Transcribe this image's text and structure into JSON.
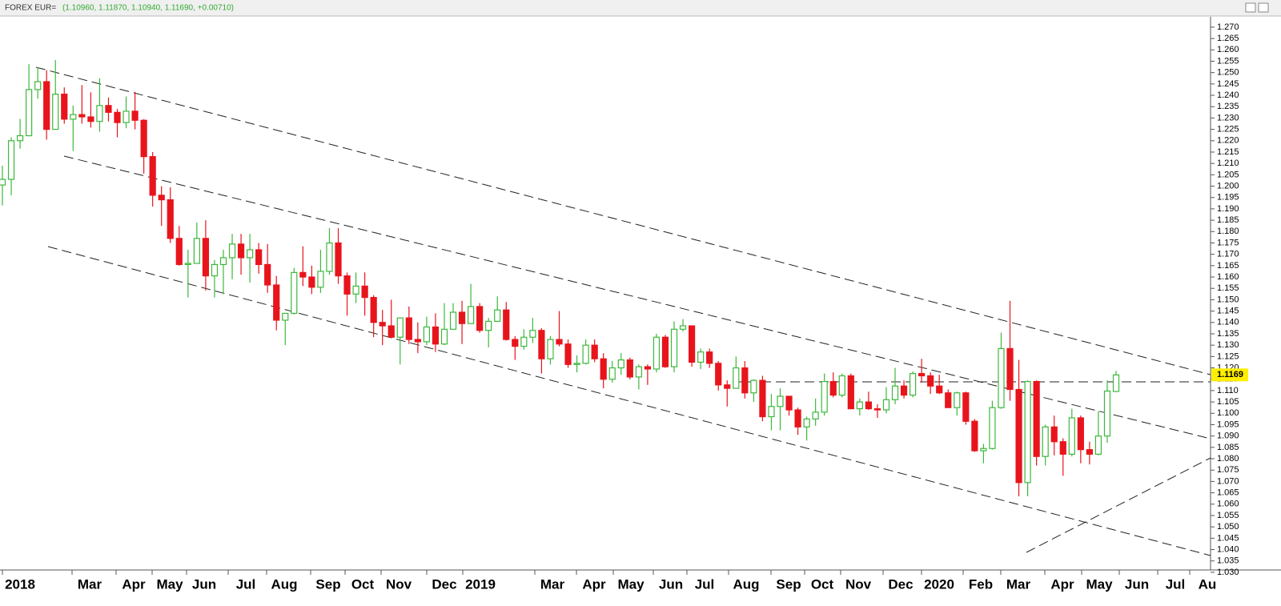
{
  "header": {
    "symbol": "FOREX EUR=",
    "quote": "(1.10960, 1.11870, 1.10940, 1.11690, +0.00710)"
  },
  "chart_data": {
    "type": "candlestick",
    "up_color": "#3cb83c",
    "down_color": "#e8141c",
    "ylim": [
      1.0275,
      1.2742
    ],
    "yticks": [
      {
        "value": 1.03,
        "label": "1.030"
      },
      {
        "value": 1.035,
        "label": "1.035"
      },
      {
        "value": 1.04,
        "label": "1.040"
      },
      {
        "value": 1.045,
        "label": "1.045"
      },
      {
        "value": 1.05,
        "label": "1.050"
      },
      {
        "value": 1.055,
        "label": "1.055"
      },
      {
        "value": 1.06,
        "label": "1.060"
      },
      {
        "value": 1.065,
        "label": "1.065"
      },
      {
        "value": 1.07,
        "label": "1.070"
      },
      {
        "value": 1.075,
        "label": "1.075"
      },
      {
        "value": 1.08,
        "label": "1.080"
      },
      {
        "value": 1.085,
        "label": "1.085"
      },
      {
        "value": 1.09,
        "label": "1.090"
      },
      {
        "value": 1.095,
        "label": "1.095"
      },
      {
        "value": 1.1,
        "label": "1.100"
      },
      {
        "value": 1.105,
        "label": "1.105"
      },
      {
        "value": 1.11,
        "label": "1.110"
      },
      {
        "value": 1.115,
        "label": "1.115"
      },
      {
        "value": 1.12,
        "label": "1.120"
      },
      {
        "value": 1.125,
        "label": "1.125"
      },
      {
        "value": 1.13,
        "label": "1.130"
      },
      {
        "value": 1.135,
        "label": "1.135"
      },
      {
        "value": 1.14,
        "label": "1.140"
      },
      {
        "value": 1.145,
        "label": "1.145"
      },
      {
        "value": 1.15,
        "label": "1.150"
      },
      {
        "value": 1.155,
        "label": "1.155"
      },
      {
        "value": 1.16,
        "label": "1.160"
      },
      {
        "value": 1.165,
        "label": "1.165"
      },
      {
        "value": 1.17,
        "label": "1.170"
      },
      {
        "value": 1.175,
        "label": "1.175"
      },
      {
        "value": 1.18,
        "label": "1.180"
      },
      {
        "value": 1.185,
        "label": "1.185"
      },
      {
        "value": 1.19,
        "label": "1.190"
      },
      {
        "value": 1.195,
        "label": "1.195"
      },
      {
        "value": 1.2,
        "label": "1.200"
      },
      {
        "value": 1.205,
        "label": "1.205"
      },
      {
        "value": 1.21,
        "label": "1.210"
      },
      {
        "value": 1.215,
        "label": "1.215"
      },
      {
        "value": 1.22,
        "label": "1.220"
      },
      {
        "value": 1.225,
        "label": "1.225"
      },
      {
        "value": 1.23,
        "label": "1.230"
      },
      {
        "value": 1.235,
        "label": "1.235"
      },
      {
        "value": 1.24,
        "label": "1.240"
      },
      {
        "value": 1.245,
        "label": "1.245"
      },
      {
        "value": 1.25,
        "label": "1.250"
      },
      {
        "value": 1.255,
        "label": "1.255"
      },
      {
        "value": 1.26,
        "label": "1.260"
      },
      {
        "value": 1.265,
        "label": "1.265"
      },
      {
        "value": 1.27,
        "label": "1.270"
      }
    ],
    "last_price": 1.1169,
    "x_labels": [
      "2018",
      "Mar",
      "Apr",
      "May",
      "Jun",
      "Jul",
      "Aug",
      "Sep",
      "Oct",
      "Nov",
      "Dec",
      "2019",
      "Mar",
      "Apr",
      "May",
      "Jun",
      "Jul",
      "Aug",
      "Sep",
      "Oct",
      "Nov",
      "Dec",
      "2020",
      "Feb",
      "Mar",
      "Apr",
      "May",
      "Jun",
      "Jul",
      "Au"
    ],
    "open": [
      1.2005,
      1.203,
      1.22,
      1.2222,
      1.2425,
      1.246,
      1.225,
      1.2405,
      1.2295,
      1.2315,
      1.2305,
      1.2285,
      1.2355,
      1.2325,
      1.228,
      1.233,
      1.229,
      1.213,
      1.196,
      1.194,
      1.177,
      1.1655,
      1.166,
      1.177,
      1.1605,
      1.1655,
      1.1685,
      1.1745,
      1.1685,
      1.172,
      1.1655,
      1.1565,
      1.141,
      1.144,
      1.162,
      1.16,
      1.1555,
      1.1625,
      1.175,
      1.1605,
      1.1525,
      1.156,
      1.151,
      1.14,
      1.1385,
      1.1335,
      1.142,
      1.1325,
      1.1315,
      1.138,
      1.1305,
      1.137,
      1.1445,
      1.1395,
      1.147,
      1.1365,
      1.1405,
      1.1455,
      1.1325,
      1.1295,
      1.1335,
      1.1365,
      1.124,
      1.1325,
      1.1305,
      1.1215,
      1.122,
      1.13,
      1.124,
      1.115,
      1.12,
      1.1235,
      1.116,
      1.1205,
      1.1195,
      1.1335,
      1.1205,
      1.137,
      1.1385,
      1.1225,
      1.127,
      1.122,
      1.1125,
      1.111,
      1.12,
      1.109,
      1.1145,
      1.0985,
      1.103,
      1.1075,
      1.1015,
      1.094,
      1.0975,
      1.1005,
      1.114,
      1.108,
      1.1165,
      1.102,
      1.105,
      1.102,
      1.1015,
      1.106,
      1.112,
      1.108,
      1.1175,
      1.1165,
      1.112,
      1.109,
      1.1025,
      1.109,
      1.0965,
      1.0835,
      1.0845,
      1.1025,
      1.1285,
      1.1105,
      1.0695,
      1.114,
      1.081,
      1.094,
      1.0875,
      1.082,
      1.098,
      1.084,
      1.082,
      1.09,
      1.1096
    ],
    "high": [
      1.209,
      1.2215,
      1.2296,
      1.2537,
      1.2523,
      1.251,
      1.2555,
      1.2435,
      1.2355,
      1.2445,
      1.2413,
      1.2475,
      1.239,
      1.234,
      1.2395,
      1.2415,
      1.2295,
      1.215,
      1.2,
      1.1995,
      1.1825,
      1.172,
      1.184,
      1.185,
      1.1675,
      1.172,
      1.179,
      1.179,
      1.179,
      1.175,
      1.1745,
      1.1605,
      1.144,
      1.164,
      1.1735,
      1.165,
      1.172,
      1.1815,
      1.1815,
      1.162,
      1.162,
      1.162,
      1.152,
      1.1455,
      1.15,
      1.142,
      1.147,
      1.14,
      1.1425,
      1.144,
      1.1485,
      1.1485,
      1.1495,
      1.157,
      1.1485,
      1.142,
      1.1515,
      1.149,
      1.134,
      1.137,
      1.142,
      1.1375,
      1.134,
      1.145,
      1.1325,
      1.1255,
      1.1325,
      1.1325,
      1.1265,
      1.123,
      1.1265,
      1.1245,
      1.1215,
      1.1215,
      1.135,
      1.1345,
      1.1405,
      1.1415,
      1.1385,
      1.1285,
      1.1285,
      1.123,
      1.1145,
      1.125,
      1.123,
      1.115,
      1.1165,
      1.1085,
      1.111,
      1.1075,
      1.1025,
      1.0985,
      1.1065,
      1.1175,
      1.118,
      1.1175,
      1.1175,
      1.1065,
      1.1095,
      1.104,
      1.1115,
      1.12,
      1.1145,
      1.1185,
      1.124,
      1.118,
      1.117,
      1.1105,
      1.1095,
      1.1095,
      1.0975,
      1.0865,
      1.1055,
      1.1355,
      1.1495,
      1.1235,
      1.1145,
      1.1145,
      1.095,
      1.099,
      1.089,
      1.102,
      1.099,
      1.0875,
      1.101,
      1.1145,
      1.1187
    ],
    "low": [
      1.1915,
      1.196,
      1.2165,
      1.2222,
      1.2385,
      1.2205,
      1.225,
      1.2275,
      1.2155,
      1.2275,
      1.2258,
      1.224,
      1.2285,
      1.2215,
      1.2255,
      1.225,
      1.2055,
      1.191,
      1.1825,
      1.175,
      1.165,
      1.151,
      1.166,
      1.154,
      1.151,
      1.1525,
      1.159,
      1.161,
      1.1575,
      1.1615,
      1.153,
      1.1365,
      1.13,
      1.1435,
      1.156,
      1.1525,
      1.153,
      1.161,
      1.157,
      1.143,
      1.1485,
      1.143,
      1.1335,
      1.13,
      1.133,
      1.1215,
      1.1305,
      1.1265,
      1.13,
      1.127,
      1.13,
      1.137,
      1.1305,
      1.1395,
      1.1355,
      1.129,
      1.1405,
      1.132,
      1.1235,
      1.128,
      1.131,
      1.1175,
      1.1215,
      1.1295,
      1.12,
      1.118,
      1.1215,
      1.1225,
      1.111,
      1.1135,
      1.117,
      1.115,
      1.1105,
      1.1125,
      1.118,
      1.12,
      1.118,
      1.136,
      1.1205,
      1.1195,
      1.12,
      1.11,
      1.103,
      1.111,
      1.1065,
      1.105,
      1.0965,
      1.0925,
      1.0925,
      1.099,
      1.0905,
      1.088,
      1.0945,
      1.099,
      1.107,
      1.107,
      1.102,
      1.099,
      1.1015,
      1.098,
      1.1,
      1.104,
      1.1065,
      1.107,
      1.1135,
      1.1085,
      1.1085,
      1.1025,
      1.099,
      1.095,
      1.083,
      1.078,
      1.084,
      1.102,
      1.1055,
      1.0635,
      1.0635,
      1.077,
      1.077,
      1.0815,
      1.0725,
      1.081,
      1.078,
      1.0775,
      1.0815,
      1.087,
      1.1094
    ],
    "close": [
      1.203,
      1.22,
      1.2222,
      1.2425,
      1.246,
      1.225,
      1.2405,
      1.2295,
      1.2315,
      1.2305,
      1.2285,
      1.2355,
      1.2325,
      1.228,
      1.233,
      1.229,
      1.213,
      1.196,
      1.194,
      1.177,
      1.1655,
      1.166,
      1.177,
      1.1605,
      1.1655,
      1.1685,
      1.1745,
      1.1685,
      1.172,
      1.1655,
      1.1565,
      1.141,
      1.144,
      1.162,
      1.16,
      1.1555,
      1.1625,
      1.175,
      1.1605,
      1.1525,
      1.156,
      1.151,
      1.14,
      1.1385,
      1.1335,
      1.142,
      1.1325,
      1.1315,
      1.138,
      1.1305,
      1.137,
      1.1445,
      1.1395,
      1.147,
      1.1365,
      1.1405,
      1.1455,
      1.1325,
      1.1295,
      1.1335,
      1.1365,
      1.124,
      1.1325,
      1.1305,
      1.1215,
      1.122,
      1.13,
      1.124,
      1.115,
      1.12,
      1.1235,
      1.116,
      1.1205,
      1.1195,
      1.1335,
      1.1205,
      1.137,
      1.1385,
      1.1225,
      1.127,
      1.122,
      1.1125,
      1.111,
      1.12,
      1.109,
      1.1145,
      1.0985,
      1.103,
      1.1075,
      1.1015,
      1.094,
      1.0975,
      1.1005,
      1.114,
      1.108,
      1.1165,
      1.102,
      1.105,
      1.102,
      1.1015,
      1.106,
      1.112,
      1.108,
      1.1175,
      1.1165,
      1.112,
      1.109,
      1.1025,
      1.109,
      1.0965,
      1.0835,
      1.0845,
      1.1025,
      1.1285,
      1.1105,
      1.0695,
      1.114,
      1.081,
      1.094,
      1.0875,
      1.082,
      1.098,
      1.084,
      1.082,
      1.09,
      1.1098,
      1.1169
    ]
  }
}
